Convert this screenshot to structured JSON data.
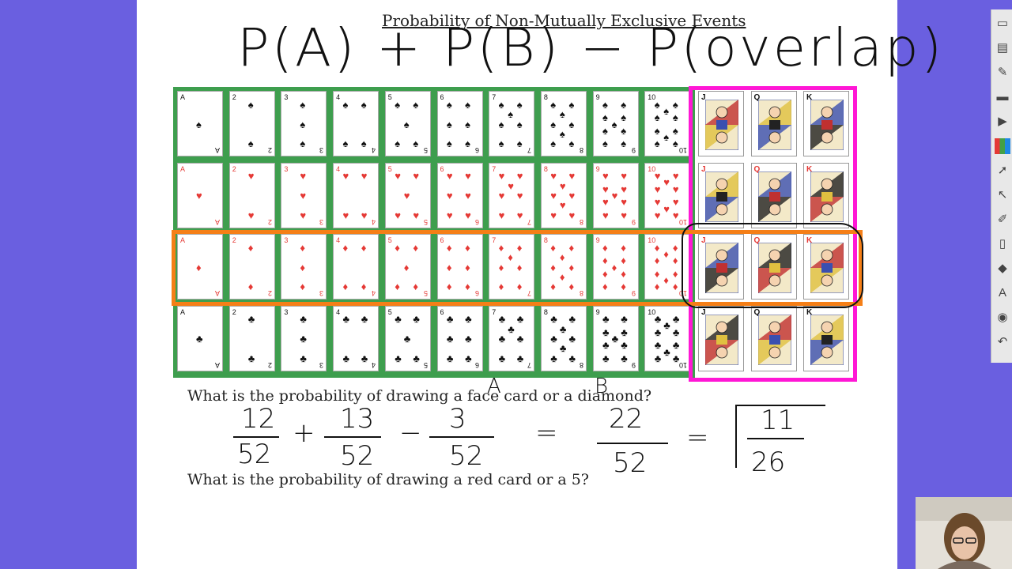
{
  "title": "Probability of Non-Mutually Exclusive Events",
  "formula": "P(A) + P(B) − P(overlap)",
  "ranks": [
    "A",
    "2",
    "3",
    "4",
    "5",
    "6",
    "7",
    "8",
    "9",
    "10"
  ],
  "face_ranks": [
    "J",
    "Q",
    "K"
  ],
  "suits": [
    {
      "symbol": "♠",
      "color": "black"
    },
    {
      "symbol": "♥",
      "color": "red"
    },
    {
      "symbol": "♦",
      "color": "red"
    },
    {
      "symbol": "♣",
      "color": "black"
    }
  ],
  "label_a": "A",
  "label_b": "B",
  "question1": "What is the probability of drawing a face card or a diamond?",
  "question2": "What is the probability of drawing a red card or a 5?",
  "work": {
    "f1_num": "12",
    "f1_den": "52",
    "plus": "+",
    "f2_num": "13",
    "f2_den": "52",
    "minus": "−",
    "f3_num": "3",
    "f3_den": "52",
    "eq1": "=",
    "f4_num": "22",
    "f4_den": "52",
    "eq2": "=",
    "f5_num": "11",
    "f5_den": "26"
  },
  "colors": {
    "background": "#6a5fe0",
    "green_border": "#3e9e4e",
    "pink_box": "#ff17d5",
    "orange_box": "#f57f17"
  },
  "toolbar_icons": [
    "file-icon",
    "page-icon",
    "pen-icon",
    "highlighter-icon",
    "play-icon",
    "color-palette-icon",
    "arrow-icon",
    "pointer-icon",
    "marker-icon",
    "eraser-icon",
    "shapes-icon",
    "text-icon",
    "fill-icon",
    "undo-icon"
  ]
}
